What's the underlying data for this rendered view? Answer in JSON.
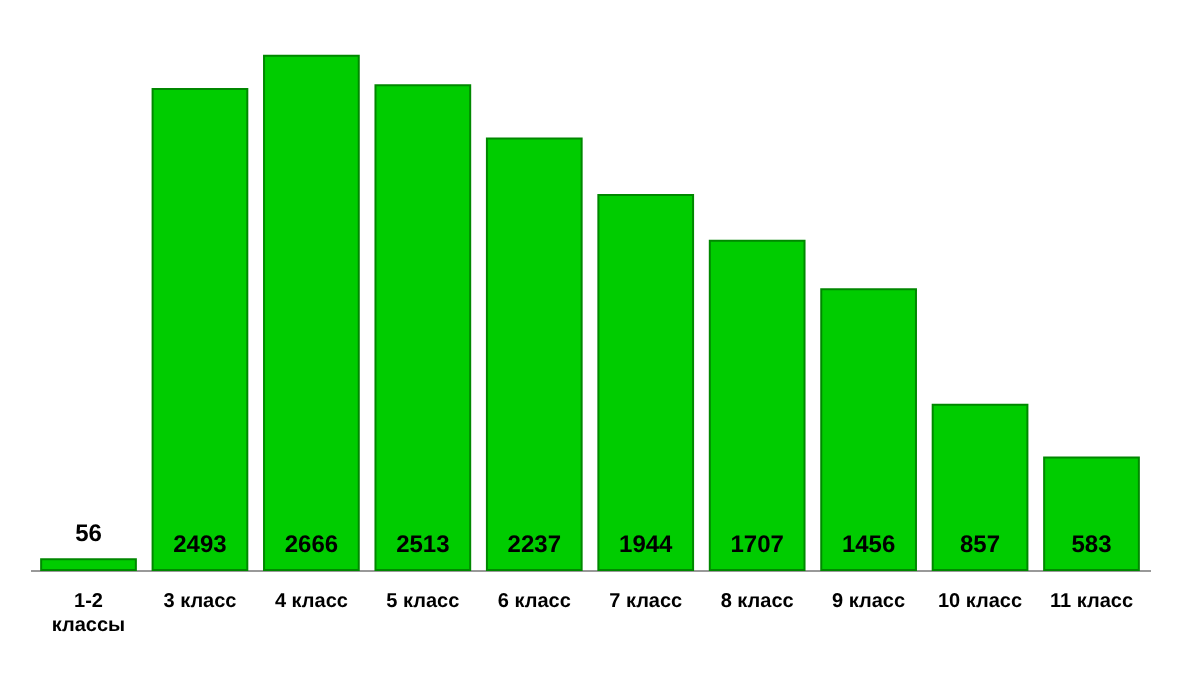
{
  "chart_data": {
    "type": "bar",
    "categories": [
      "1-2 классы",
      "3 класс",
      "4 класс",
      "5 класс",
      "6 класс",
      "7 класс",
      "8 класс",
      "9 класс",
      "10 класс",
      "11 класс"
    ],
    "values": [
      56,
      2493,
      2666,
      2513,
      2237,
      1944,
      1707,
      1456,
      857,
      583
    ],
    "color": "#00cc00",
    "data_labels": true,
    "grid": false
  }
}
